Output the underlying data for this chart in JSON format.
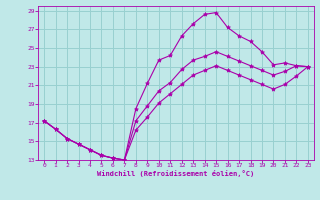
{
  "xlabel": "Windchill (Refroidissement éolien,°C)",
  "bg_color": "#c0e8e8",
  "grid_color": "#98d0d0",
  "line_color": "#aa00aa",
  "xlim": [
    -0.5,
    23.5
  ],
  "ylim": [
    13,
    29.5
  ],
  "xticks": [
    0,
    1,
    2,
    3,
    4,
    5,
    6,
    7,
    8,
    9,
    10,
    11,
    12,
    13,
    14,
    15,
    16,
    17,
    18,
    19,
    20,
    21,
    22,
    23
  ],
  "yticks": [
    13,
    15,
    17,
    19,
    21,
    23,
    25,
    27,
    29
  ],
  "curve1_x": [
    0,
    1,
    2,
    3,
    4,
    5,
    6,
    7,
    8,
    9,
    10,
    11,
    12,
    13,
    14,
    15,
    16,
    17,
    18,
    19,
    20,
    21,
    22,
    23
  ],
  "curve1_y": [
    17.2,
    16.3,
    15.3,
    14.7,
    14.1,
    13.5,
    13.2,
    13.0,
    18.5,
    21.2,
    23.7,
    24.2,
    26.3,
    27.6,
    28.6,
    28.8,
    27.2,
    26.3,
    25.7,
    24.6,
    23.2,
    23.4,
    23.1,
    23.0
  ],
  "curve2_x": [
    0,
    1,
    2,
    3,
    4,
    5,
    6,
    7,
    8,
    9,
    10,
    11,
    12,
    13,
    14,
    15,
    16,
    17,
    18,
    19,
    20,
    21,
    22,
    23
  ],
  "curve2_y": [
    17.2,
    16.3,
    15.3,
    14.7,
    14.1,
    13.5,
    13.2,
    13.0,
    17.2,
    18.8,
    20.4,
    21.3,
    22.7,
    23.7,
    24.1,
    24.6,
    24.1,
    23.6,
    23.1,
    22.6,
    22.1,
    22.5,
    23.1,
    23.0
  ],
  "curve3_x": [
    0,
    1,
    2,
    3,
    4,
    5,
    6,
    7,
    8,
    9,
    10,
    11,
    12,
    13,
    14,
    15,
    16,
    17,
    18,
    19,
    20,
    21,
    22,
    23
  ],
  "curve3_y": [
    17.2,
    16.3,
    15.3,
    14.7,
    14.1,
    13.5,
    13.2,
    13.0,
    16.2,
    17.6,
    19.1,
    20.1,
    21.1,
    22.1,
    22.6,
    23.1,
    22.6,
    22.1,
    21.6,
    21.1,
    20.6,
    21.1,
    22.0,
    23.0
  ]
}
